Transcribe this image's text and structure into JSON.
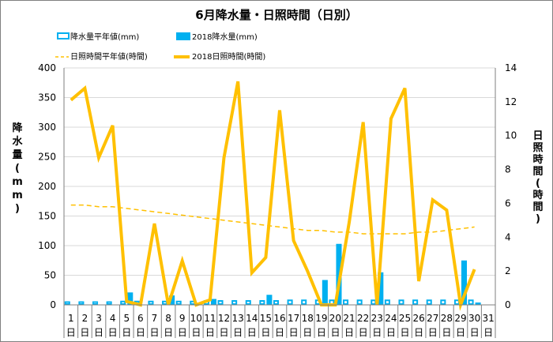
{
  "chart_data": {
    "type": "bar",
    "title": "6月降水量・日照時間（日別）",
    "ylabel": "降水量(mm)",
    "y2label": "日照時間(時間)",
    "ylim": [
      0,
      400
    ],
    "y2lim": [
      0,
      14
    ],
    "yticks": [
      0,
      50,
      100,
      150,
      200,
      250,
      300,
      350,
      400
    ],
    "y2ticks": [
      0,
      2,
      4,
      6,
      8,
      10,
      12,
      14
    ],
    "categories": [
      "1",
      "2",
      "3",
      "4",
      "5",
      "6",
      "7",
      "8",
      "9",
      "10",
      "11",
      "12",
      "13",
      "14",
      "15",
      "16",
      "17",
      "18",
      "19",
      "20",
      "21",
      "22",
      "23",
      "24",
      "25",
      "26",
      "27",
      "28",
      "29",
      "30",
      "31"
    ],
    "day_suffix": "日",
    "colors": {
      "normal_precip": "#00b0f0",
      "precip_2018": "#00b0f0",
      "normal_sun": "#ffc000",
      "sun_2018": "#ffc000"
    },
    "series": [
      {
        "name": "降水量平年値(mm)",
        "kind": "bar-outline",
        "axis": "left",
        "values": [
          6,
          6,
          6,
          6,
          7,
          7,
          7,
          7,
          7,
          7,
          8,
          8,
          8,
          8,
          8,
          8,
          9,
          9,
          9,
          9,
          9,
          9,
          9,
          9,
          9,
          9,
          9,
          9,
          9,
          9,
          null
        ]
      },
      {
        "name": "2018降水量(mm)",
        "kind": "bar",
        "axis": "left",
        "values": [
          0,
          0,
          0,
          0,
          21,
          0,
          0,
          16,
          0,
          0,
          10,
          0,
          0,
          0,
          17,
          0,
          0,
          0,
          42,
          103,
          0,
          0,
          55,
          0,
          0,
          0,
          0,
          0,
          75,
          4,
          null
        ]
      },
      {
        "name": "日照時間平年値(時間)",
        "kind": "line-dashed",
        "axis": "right",
        "values": [
          5.9,
          5.9,
          5.8,
          5.8,
          5.7,
          5.6,
          5.5,
          5.4,
          5.3,
          5.2,
          5.1,
          5.0,
          4.9,
          4.8,
          4.7,
          4.6,
          4.5,
          4.4,
          4.4,
          4.3,
          4.3,
          4.2,
          4.2,
          4.2,
          4.2,
          4.3,
          4.3,
          4.4,
          4.5,
          4.6,
          null
        ]
      },
      {
        "name": "2018日照時間(時間)",
        "kind": "line",
        "axis": "right",
        "values": [
          12.1,
          12.8,
          8.7,
          10.6,
          0.2,
          0.0,
          4.8,
          0.0,
          2.6,
          0.0,
          0.3,
          8.7,
          13.2,
          1.9,
          2.8,
          11.5,
          3.8,
          2.0,
          0.0,
          0.0,
          4.9,
          10.8,
          0.0,
          11.0,
          12.8,
          1.4,
          6.2,
          5.6,
          0.0,
          2.1,
          null
        ]
      }
    ]
  }
}
